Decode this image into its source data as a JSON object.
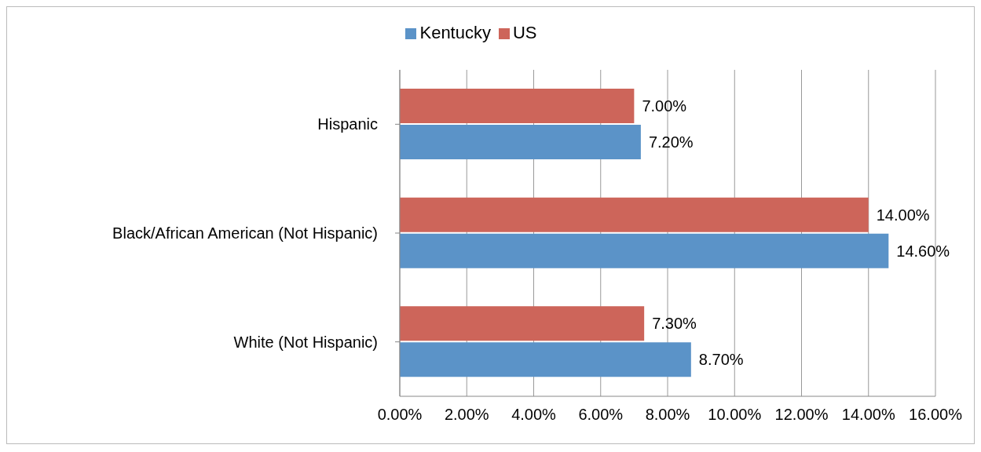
{
  "chart_data": {
    "type": "bar",
    "orientation": "horizontal",
    "categories": [
      "Hispanic",
      "Black/African American (Not Hispanic)",
      "White (Not Hispanic)"
    ],
    "series": [
      {
        "name": "US",
        "color": "#cd655a",
        "values": [
          7.0,
          14.0,
          7.3
        ],
        "value_labels": [
          "7.00%",
          "14.00%",
          "7.30%"
        ]
      },
      {
        "name": "Kentucky",
        "color": "#5b93c8",
        "values": [
          7.2,
          14.6,
          8.7
        ],
        "value_labels": [
          "7.20%",
          "14.60%",
          "8.70%"
        ]
      }
    ],
    "xlim": [
      0,
      16
    ],
    "xticks": [
      {
        "value": 0,
        "label": "0.00%"
      },
      {
        "value": 2,
        "label": "2.00%"
      },
      {
        "value": 4,
        "label": "4.00%"
      },
      {
        "value": 6,
        "label": "6.00%"
      },
      {
        "value": 8,
        "label": "8.00%"
      },
      {
        "value": 10,
        "label": "10.00%"
      },
      {
        "value": 12,
        "label": "12.00%"
      },
      {
        "value": 14,
        "label": "14.00%"
      },
      {
        "value": 16,
        "label": "16.00%"
      }
    ],
    "grid": "x",
    "legend": "top"
  }
}
